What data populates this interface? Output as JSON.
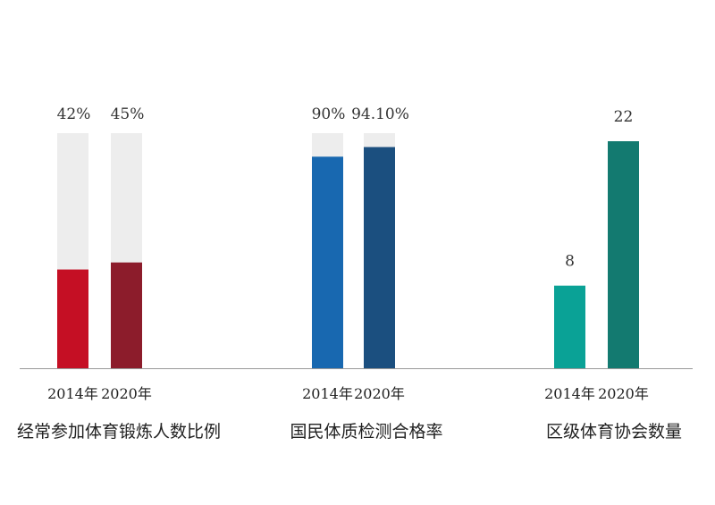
{
  "chart_data": {
    "type": "bar",
    "baseline_color": "#999999",
    "track_color": "#ededed",
    "groups": [
      {
        "label": "经常参加体育锻炼人数比例",
        "unit": "percent",
        "bars": [
          {
            "category": "2014年",
            "value": 42,
            "value_label": "42%",
            "max": 100,
            "color": "#c50f24"
          },
          {
            "category": "2020年",
            "value": 45,
            "value_label": "45%",
            "max": 100,
            "color": "#8c1c2b"
          }
        ]
      },
      {
        "label": "国民体质检测合格率",
        "unit": "percent",
        "bars": [
          {
            "category": "2014年",
            "value": 90,
            "value_label": "90%",
            "max": 100,
            "color": "#1868b0"
          },
          {
            "category": "2020年",
            "value": 94.1,
            "value_label": "94.10%",
            "max": 100,
            "color": "#1b4f7f"
          }
        ]
      },
      {
        "label": "区级体育协会数量",
        "unit": "count",
        "bars": [
          {
            "category": "2014年",
            "value": 8,
            "value_label": "8",
            "max": 22,
            "color": "#0aa296"
          },
          {
            "category": "2020年",
            "value": 22,
            "value_label": "22",
            "max": 22,
            "color": "#137a70"
          }
        ]
      }
    ]
  }
}
